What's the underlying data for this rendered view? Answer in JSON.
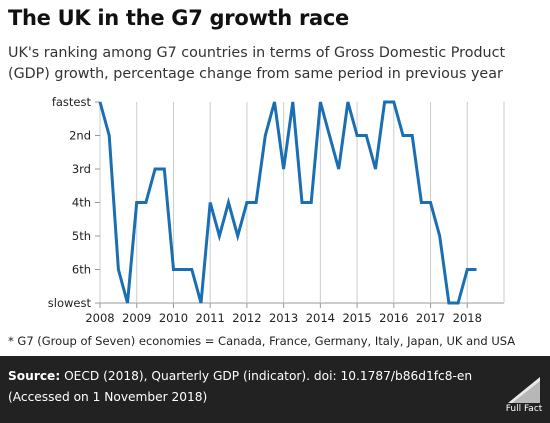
{
  "header": {
    "title": "The UK in the G7 growth race",
    "subtitle_line1": "UK's ranking among G7 countries in terms of Gross Domestic Product",
    "subtitle_line2": "(GDP) growth, percentage change from same period in previous year"
  },
  "chart_data": {
    "type": "line",
    "title": "The UK in the G7 growth race",
    "ylabel": "",
    "xlabel": "",
    "y_categories": [
      "fastest",
      "2nd",
      "3rd",
      "4th",
      "5th",
      "6th",
      "slowest"
    ],
    "x_ticks": [
      "2008",
      "2009",
      "2010",
      "2011",
      "2012",
      "2013",
      "2014",
      "2015",
      "2016",
      "2017",
      "2018"
    ],
    "xlim": [
      2008,
      2019
    ],
    "ylim": [
      7,
      1
    ],
    "grid": "vertical",
    "series": [
      {
        "name": "",
        "color": "#1a6fb4",
        "points": [
          [
            2008.0,
            1
          ],
          [
            2008.25,
            2
          ],
          [
            2008.5,
            6
          ],
          [
            2008.75,
            7
          ],
          [
            2009.0,
            4
          ],
          [
            2009.25,
            4
          ],
          [
            2009.5,
            3
          ],
          [
            2009.75,
            3
          ],
          [
            2010.0,
            6
          ],
          [
            2010.25,
            6
          ],
          [
            2010.5,
            6
          ],
          [
            2010.75,
            7
          ],
          [
            2011.0,
            4
          ],
          [
            2011.25,
            5
          ],
          [
            2011.5,
            4
          ],
          [
            2011.75,
            5
          ],
          [
            2012.0,
            4
          ],
          [
            2012.25,
            4
          ],
          [
            2012.5,
            2
          ],
          [
            2012.75,
            1
          ],
          [
            2013.0,
            3
          ],
          [
            2013.25,
            1
          ],
          [
            2013.5,
            4
          ],
          [
            2013.75,
            4
          ],
          [
            2014.0,
            1
          ],
          [
            2014.25,
            2
          ],
          [
            2014.5,
            3
          ],
          [
            2014.75,
            1
          ],
          [
            2015.0,
            2
          ],
          [
            2015.25,
            2
          ],
          [
            2015.5,
            3
          ],
          [
            2015.75,
            1
          ],
          [
            2016.0,
            1
          ],
          [
            2016.25,
            2
          ],
          [
            2016.5,
            2
          ],
          [
            2016.75,
            4
          ],
          [
            2017.0,
            4
          ],
          [
            2017.25,
            5
          ],
          [
            2017.5,
            7
          ],
          [
            2017.75,
            7
          ],
          [
            2018.0,
            6
          ],
          [
            2018.25,
            6
          ]
        ]
      }
    ]
  },
  "footnote": "* G7 (Group of Seven) economies = Canada, France, Germany, Italy, Japan, UK and USA",
  "footer": {
    "source_label": "Source:",
    "source_text": "OECD (2018), Quarterly GDP (indicator). doi: 10.1787/b86d1fc8-en",
    "accessed": "(Accessed on 1 November 2018)",
    "logo_text": "Full Fact"
  },
  "colors": {
    "line": "#1a6fb4",
    "footer_bg": "#222222",
    "grid": "#cccccc"
  }
}
